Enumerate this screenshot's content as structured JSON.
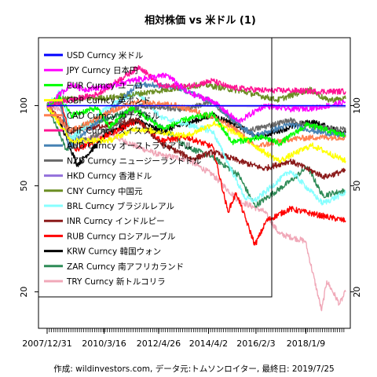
{
  "chart_data": {
    "type": "line",
    "title": "相対株価 vs 米ドル (1)",
    "caption": "作成: wildinvestors.com, データ元:トムソンロイター, 最終日: 2019/7/25",
    "xlabel": "",
    "ylabel": "",
    "y_scale": "log",
    "ylim": [
      15,
      175
    ],
    "xlim": [
      "2007-12-31",
      "2019-07-25"
    ],
    "x_tick_labels": [
      {
        "date": "2007-12-31",
        "label": "2007/12/31"
      },
      {
        "date": "2010-03-16",
        "label": "2010/3/16"
      },
      {
        "date": "2012-04-26",
        "label": "2012/4/26"
      },
      {
        "date": "2014-04-02",
        "label": "2014/4/2"
      },
      {
        "date": "2016-02-03",
        "label": "2016/2/3"
      },
      {
        "date": "2018-01-09",
        "label": "2018/1/9"
      }
    ],
    "y_ticks": [
      20,
      50,
      100
    ],
    "legend_position": "top-left",
    "grid": false,
    "series": [
      {
        "name": "USD Curncy 米ドル",
        "color": "#0000ff",
        "x": [
          "2007-12-31",
          "2019-07-25"
        ],
        "values": [
          100,
          100
        ]
      },
      {
        "name": "JPY Curncy 日本円",
        "color": "#ff00ff",
        "x": [
          "2007-12-31",
          "2008-12-01",
          "2009-06-01",
          "2010-06-01",
          "2011-06-01",
          "2012-09-01",
          "2013-06-01",
          "2014-06-01",
          "2015-06-01",
          "2016-06-01",
          "2017-06-01",
          "2018-06-01",
          "2019-07-25"
        ],
        "values": [
          100,
          120,
          115,
          118,
          125,
          130,
          112,
          104,
          87,
          100,
          97,
          98,
          103
        ]
      },
      {
        "name": "EUR Curncy ユーロ",
        "color": "#00ff00",
        "x": [
          "2007-12-31",
          "2008-07-01",
          "2008-12-01",
          "2009-12-01",
          "2010-06-01",
          "2011-04-01",
          "2012-07-01",
          "2013-06-01",
          "2014-06-01",
          "2015-03-01",
          "2016-06-01",
          "2017-01-01",
          "2018-02-01",
          "2019-07-25"
        ],
        "values": [
          100,
          108,
          92,
          98,
          83,
          98,
          82,
          89,
          93,
          73,
          76,
          72,
          85,
          77
        ]
      },
      {
        "name": "GBP Curncy 英ポンド",
        "color": "#ffff00",
        "x": [
          "2007-12-31",
          "2008-12-01",
          "2010-06-01",
          "2011-06-01",
          "2013-06-01",
          "2014-07-01",
          "2015-06-01",
          "2016-07-01",
          "2017-01-01",
          "2018-04-01",
          "2019-07-25"
        ],
        "values": [
          100,
          74,
          74,
          82,
          77,
          86,
          78,
          66,
          62,
          71,
          62
        ]
      },
      {
        "name": "CAD Curncy カナダドル",
        "color": "#ff7f50",
        "x": [
          "2007-12-31",
          "2008-12-01",
          "2010-06-01",
          "2011-07-01",
          "2013-01-01",
          "2014-06-01",
          "2015-06-01",
          "2016-01-20",
          "2017-06-01",
          "2018-06-01",
          "2019-07-25"
        ],
        "values": [
          100,
          80,
          95,
          103,
          100,
          91,
          80,
          70,
          75,
          76,
          76
        ]
      },
      {
        "name": "CHF Curncy スイスフラン",
        "color": "#ff1493",
        "x": [
          "2007-12-31",
          "2008-12-01",
          "2009-12-01",
          "2011-08-01",
          "2012-06-01",
          "2013-06-01",
          "2014-06-01",
          "2015-01-20",
          "2016-06-01",
          "2017-06-01",
          "2018-06-01",
          "2019-07-25"
        ],
        "values": [
          100,
          105,
          110,
          140,
          118,
          118,
          124,
          117,
          114,
          114,
          113,
          113
        ]
      },
      {
        "name": "AUD Curncy オーストラリアドル",
        "color": "#4682b4",
        "x": [
          "2007-12-31",
          "2008-07-01",
          "2008-11-01",
          "2010-06-01",
          "2011-07-01",
          "2013-01-01",
          "2014-06-01",
          "2015-06-01",
          "2016-01-20",
          "2017-06-01",
          "2018-06-01",
          "2019-07-25"
        ],
        "values": [
          100,
          107,
          70,
          95,
          120,
          118,
          103,
          85,
          77,
          85,
          80,
          77
        ]
      },
      {
        "name": "NZD Curncy ニュージーランドドル",
        "color": "#696969",
        "x": [
          "2007-12-31",
          "2008-07-01",
          "2008-12-01",
          "2010-06-01",
          "2011-08-01",
          "2013-04-01",
          "2014-06-01",
          "2015-09-01",
          "2017-06-01",
          "2018-06-01",
          "2019-07-25"
        ],
        "values": [
          100,
          103,
          70,
          82,
          100,
          97,
          103,
          80,
          88,
          83,
          81
        ]
      },
      {
        "name": "HKD Curncy 香港ドル",
        "color": "#9370db",
        "x": [
          "2007-12-31",
          "2019-07-25"
        ],
        "values": [
          100,
          99
        ]
      },
      {
        "name": "CNY Curncy 中国元",
        "color": "#6b8e23",
        "x": [
          "2007-12-31",
          "2008-07-01",
          "2010-06-01",
          "2012-06-01",
          "2014-01-15",
          "2015-08-01",
          "2016-12-01",
          "2018-03-01",
          "2018-11-01",
          "2019-07-25"
        ],
        "values": [
          100,
          106,
          107,
          114,
          120,
          113,
          105,
          115,
          105,
          106
        ]
      },
      {
        "name": "BRL Curncy ブラジルレアル",
        "color": "#87ffff",
        "x": [
          "2007-12-31",
          "2008-08-01",
          "2008-12-01",
          "2010-06-01",
          "2011-07-01",
          "2012-06-01",
          "2013-06-01",
          "2014-06-01",
          "2015-09-01",
          "2016-01-20",
          "2017-06-01",
          "2018-09-01",
          "2019-07-25"
        ],
        "values": [
          100,
          115,
          75,
          100,
          112,
          90,
          85,
          80,
          45,
          44,
          57,
          43,
          47
        ]
      },
      {
        "name": "INR Curncy インドルピー",
        "color": "#8b1a1a",
        "x": [
          "2007-12-31",
          "2008-12-01",
          "2010-06-01",
          "2011-07-01",
          "2012-06-01",
          "2013-08-20",
          "2014-06-01",
          "2015-06-01",
          "2016-06-01",
          "2017-06-01",
          "2018-10-01",
          "2019-07-25"
        ],
        "values": [
          100,
          80,
          85,
          88,
          72,
          63,
          67,
          62,
          58,
          62,
          54,
          57
        ]
      },
      {
        "name": "RUB Curncy ロシアルーブル",
        "color": "#ff0000",
        "x": [
          "2007-12-31",
          "2008-07-01",
          "2009-02-01",
          "2010-06-01",
          "2011-07-01",
          "2012-06-01",
          "2013-06-01",
          "2014-06-01",
          "2015-01-01",
          "2015-05-01",
          "2016-01-20",
          "2016-07-01",
          "2017-06-01",
          "2018-06-01",
          "2019-07-25"
        ],
        "values": [
          100,
          104,
          68,
          78,
          88,
          74,
          76,
          70,
          40,
          47,
          30,
          37,
          41,
          39,
          37
        ]
      },
      {
        "name": "KRW Curncy 韓国ウォン",
        "color": "#000000",
        "x": [
          "2007-12-31",
          "2008-06-01",
          "2009-03-01",
          "2010-06-01",
          "2011-07-01",
          "2012-06-01",
          "2014-06-01",
          "2015-06-01",
          "2016-02-20",
          "2017-06-01",
          "2018-04-01",
          "2019-07-25"
        ],
        "values": [
          100,
          90,
          60,
          80,
          88,
          80,
          92,
          84,
          76,
          83,
          87,
          79
        ]
      },
      {
        "name": "ZAR Curncy 南アフリカランド",
        "color": "#2e8b57",
        "x": [
          "2007-12-31",
          "2008-10-01",
          "2009-06-01",
          "2010-06-01",
          "2011-07-01",
          "2012-06-01",
          "2013-06-01",
          "2014-06-01",
          "2015-06-01",
          "2016-01-20",
          "2017-06-01",
          "2018-02-01",
          "2018-09-01",
          "2019-07-25"
        ],
        "values": [
          100,
          68,
          85,
          90,
          98,
          83,
          70,
          64,
          55,
          42,
          52,
          59,
          46,
          48
        ]
      },
      {
        "name": "TRY Curncy 新トルコリラ",
        "color": "#f0a8b8",
        "x": [
          "2007-12-31",
          "2008-07-01",
          "2008-12-01",
          "2010-06-01",
          "2011-07-01",
          "2012-06-01",
          "2013-06-01",
          "2014-06-01",
          "2015-06-01",
          "2016-06-01",
          "2017-01-01",
          "2018-01-01",
          "2018-08-20",
          "2018-11-01",
          "2019-05-01",
          "2019-07-25"
        ],
        "values": [
          100,
          97,
          72,
          78,
          70,
          65,
          63,
          55,
          44,
          40,
          33,
          31,
          17,
          22,
          18,
          20
        ]
      }
    ]
  }
}
